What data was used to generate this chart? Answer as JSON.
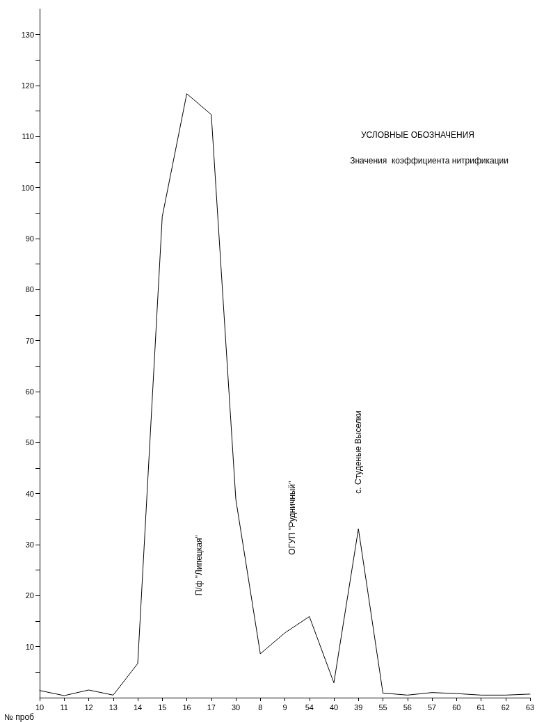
{
  "chart_data": {
    "type": "line",
    "xlabel": "№ проб",
    "legend_title": "УСЛОВНЫЕ ОБОЗНАЧЕНИЯ",
    "legend": "top right",
    "grid": false,
    "marker": "none",
    "line_style": "solid",
    "categories": [
      "10",
      "11",
      "12",
      "13",
      "14",
      "15",
      "16",
      "17",
      "30",
      "8",
      "9",
      "54",
      "40",
      "39",
      "55",
      "56",
      "57",
      "60",
      "61",
      "62",
      "63"
    ],
    "series": [
      {
        "name": "Значения  коэффициента нитрификации",
        "color": "#000000",
        "values": [
          1.4,
          0.4,
          1.5,
          0.5,
          6.7,
          94.3,
          118.4,
          114.3,
          38.9,
          8.6,
          12.7,
          15.9,
          2.9,
          33.1,
          0.9,
          0.5,
          1.0,
          0.8,
          0.5,
          0.5,
          0.7
        ]
      }
    ],
    "ylim": [
      0,
      135
    ],
    "yticks": [
      {
        "value": 5,
        "label": null
      },
      10,
      {
        "value": 15,
        "label": null
      },
      20,
      {
        "value": 25,
        "label": null
      },
      30,
      {
        "value": 35,
        "label": null
      },
      40,
      {
        "value": 45,
        "label": null
      },
      50,
      {
        "value": 55,
        "label": null
      },
      60,
      {
        "value": 65,
        "label": null
      },
      70,
      {
        "value": 75,
        "label": null
      },
      80,
      {
        "value": 85,
        "label": null
      },
      90,
      {
        "value": 95,
        "label": null
      },
      100,
      {
        "value": 105,
        "label": null
      },
      110,
      {
        "value": 115,
        "label": null
      },
      120,
      {
        "value": 125,
        "label": null
      },
      130
    ],
    "annotations": [
      "П/ф \"Липецкая\"",
      "ОГУП \"Рудничный\"",
      "с. Студеные Выселки"
    ]
  }
}
